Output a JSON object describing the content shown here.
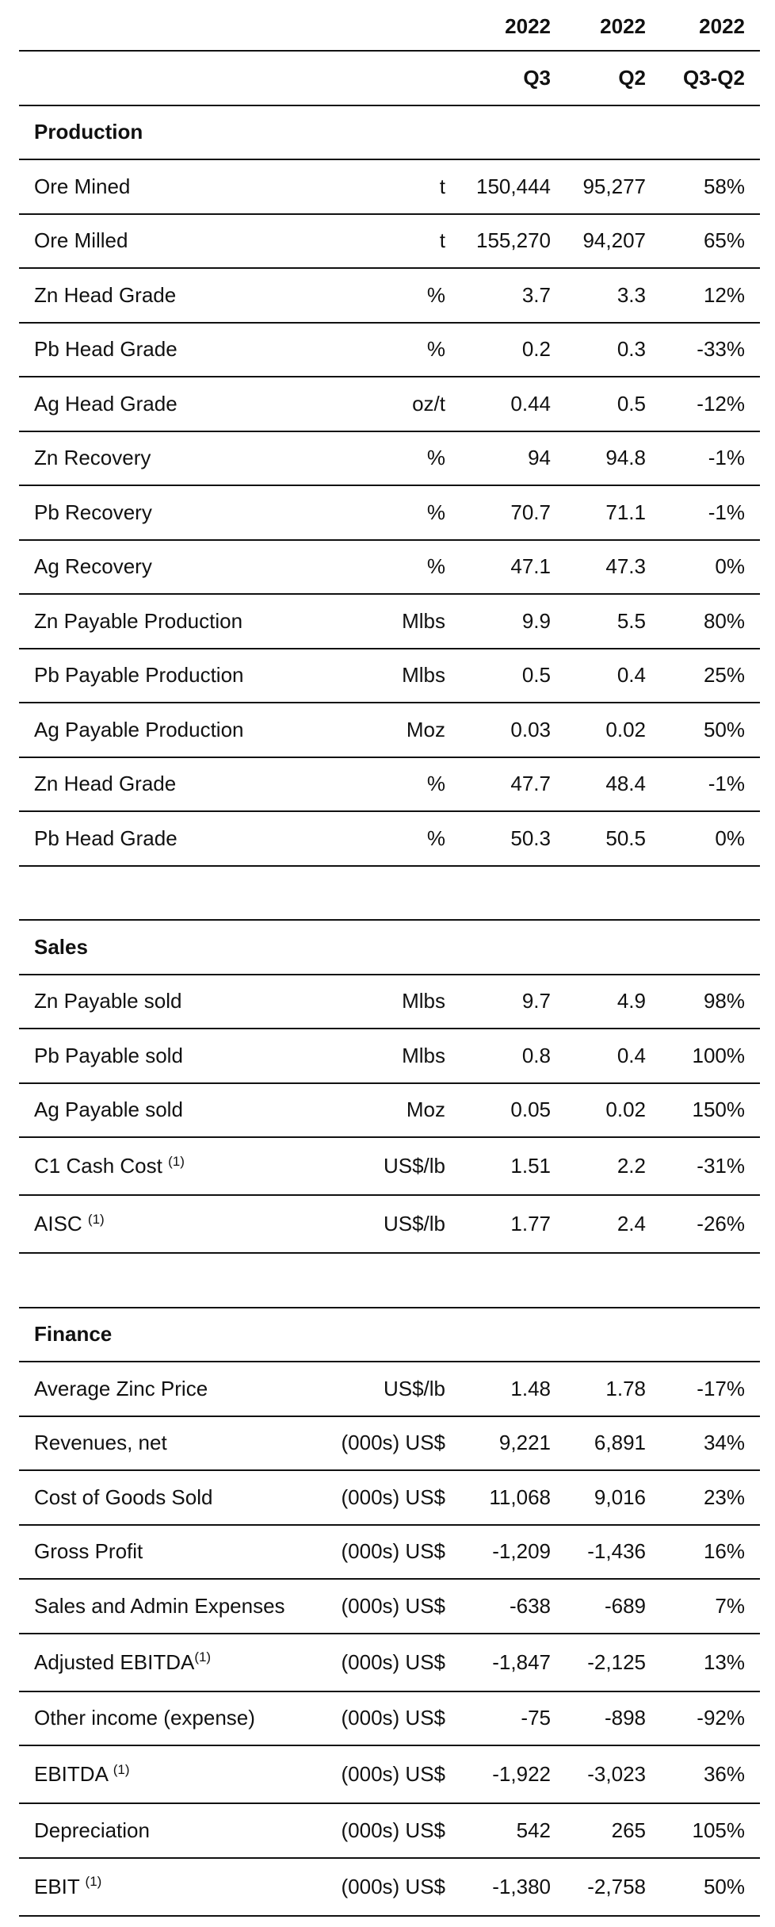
{
  "header": {
    "years": [
      "2022",
      "2022",
      "2022"
    ],
    "periods": [
      "Q3",
      "Q2",
      "Q3-Q2"
    ]
  },
  "sections": [
    {
      "title": "Production",
      "rows": [
        {
          "label": "Ore Mined",
          "unit": "t",
          "q3": "150,444",
          "q2": "95,277",
          "change": "58%"
        },
        {
          "label": "Ore Milled",
          "unit": "t",
          "q3": "155,270",
          "q2": "94,207",
          "change": "65%"
        },
        {
          "label": "Zn Head Grade",
          "unit": "%",
          "q3": "3.7",
          "q2": "3.3",
          "change": "12%"
        },
        {
          "label": "Pb Head Grade",
          "unit": "%",
          "q3": "0.2",
          "q2": "0.3",
          "change": "-33%"
        },
        {
          "label": "Ag Head Grade",
          "unit": "oz/t",
          "q3": "0.44",
          "q2": "0.5",
          "change": "-12%"
        },
        {
          "label": "Zn Recovery",
          "unit": "%",
          "q3": "94",
          "q2": "94.8",
          "change": "-1%"
        },
        {
          "label": "Pb Recovery",
          "unit": "%",
          "q3": "70.7",
          "q2": "71.1",
          "change": "-1%"
        },
        {
          "label": "Ag Recovery",
          "unit": "%",
          "q3": "47.1",
          "q2": "47.3",
          "change": "0%"
        },
        {
          "label": "Zn Payable Production",
          "unit": "Mlbs",
          "q3": "9.9",
          "q2": "5.5",
          "change": "80%"
        },
        {
          "label": "Pb Payable Production",
          "unit": "Mlbs",
          "q3": "0.5",
          "q2": "0.4",
          "change": "25%"
        },
        {
          "label": "Ag Payable Production",
          "unit": "Moz",
          "q3": "0.03",
          "q2": "0.02",
          "change": "50%"
        },
        {
          "label": "Zn Head Grade",
          "unit": "%",
          "q3": "47.7",
          "q2": "48.4",
          "change": "-1%"
        },
        {
          "label": "Pb Head Grade",
          "unit": "%",
          "q3": "50.3",
          "q2": "50.5",
          "change": "0%"
        }
      ]
    },
    {
      "title": "Sales",
      "rows": [
        {
          "label": "Zn Payable sold",
          "unit": "Mlbs",
          "q3": "9.7",
          "q2": "4.9",
          "change": "98%"
        },
        {
          "label": "Pb Payable sold",
          "unit": "Mlbs",
          "q3": "0.8",
          "q2": "0.4",
          "change": "100%"
        },
        {
          "label": "Ag Payable sold",
          "unit": "Moz",
          "q3": "0.05",
          "q2": "0.02",
          "change": "150%"
        },
        {
          "label": "C1 Cash Cost ",
          "note": "(1)",
          "unit": "US$/lb",
          "q3": "1.51",
          "q2": "2.2",
          "change": "-31%"
        },
        {
          "label": "AISC ",
          "note": "(1)",
          "unit": "US$/lb",
          "q3": "1.77",
          "q2": "2.4",
          "change": "-26%"
        }
      ]
    },
    {
      "title": "Finance",
      "rows": [
        {
          "label": "Average Zinc Price",
          "unit": "US$/lb",
          "q3": "1.48",
          "q2": "1.78",
          "change": "-17%"
        },
        {
          "label": "Revenues, net",
          "unit": "(000s) US$",
          "q3": "9,221",
          "q2": "6,891",
          "change": "34%"
        },
        {
          "label": "Cost of Goods Sold",
          "unit": "(000s) US$",
          "q3": "11,068",
          "q2": "9,016",
          "change": "23%"
        },
        {
          "label": "Gross Profit",
          "unit": "(000s) US$",
          "q3": "-1,209",
          "q2": "-1,436",
          "change": "16%"
        },
        {
          "label": "Sales and Admin Expenses",
          "unit": "(000s) US$",
          "q3": "-638",
          "q2": "-689",
          "change": "7%"
        },
        {
          "label": "Adjusted EBITDA",
          "note": "(1)",
          "unit": "(000s) US$",
          "q3": "-1,847",
          "q2": "-2,125",
          "change": "13%"
        },
        {
          "label": "Other income (expense)",
          "unit": "(000s) US$",
          "q3": "-75",
          "q2": "-898",
          "change": "-92%"
        },
        {
          "label": "EBITDA ",
          "note": "(1)",
          "unit": "(000s) US$",
          "q3": "-1,922",
          "q2": "-3,023",
          "change": "36%"
        },
        {
          "label": "Depreciation",
          "unit": "(000s) US$",
          "q3": "542",
          "q2": "265",
          "change": "105%"
        },
        {
          "label": "EBIT ",
          "note": "(1)",
          "unit": "(000s) US$",
          "q3": "-1,380",
          "q2": "-2,758",
          "change": "50%"
        }
      ]
    }
  ]
}
